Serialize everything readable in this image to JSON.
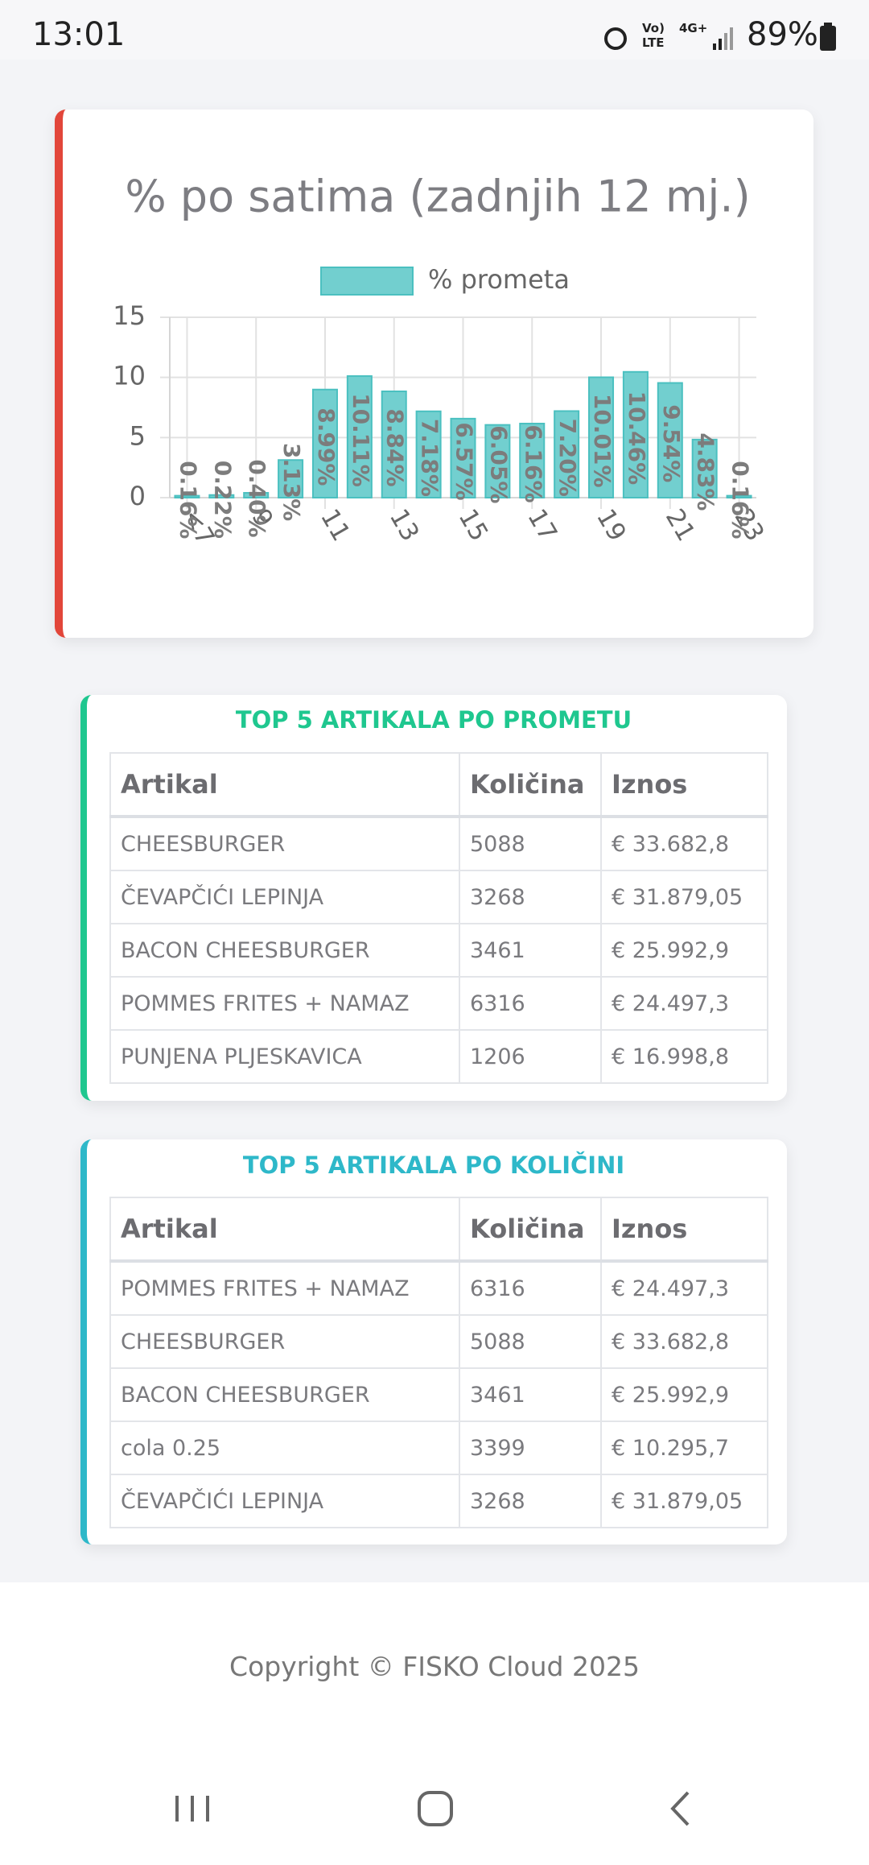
{
  "status_bar": {
    "time": "13:01",
    "volte": "Vo)",
    "lte": "LTE",
    "network": "4G+",
    "battery": "89%"
  },
  "chart_data": {
    "type": "bar",
    "title": "% po satima (zadnjih 12 mj.)",
    "categories": [
      "<7",
      null,
      "9",
      null,
      "11",
      null,
      "13",
      null,
      "15",
      null,
      "17",
      null,
      "19",
      null,
      "21",
      null,
      "23"
    ],
    "series": [
      {
        "name": "% prometa",
        "color": "#72cfcf",
        "border_color": "#4bc0c0",
        "values": [
          0.16,
          0.22,
          0.4,
          3.13,
          8.99,
          10.11,
          8.84,
          7.18,
          6.57,
          6.05,
          6.16,
          7.2,
          10.01,
          10.46,
          9.54,
          4.83,
          0.16
        ],
        "value_labels": [
          "0.16%",
          "0.22%",
          "0.40%",
          "3.13%",
          "8.99%",
          "10.11%",
          "8.84%",
          "7.18%",
          "6.57%",
          "6.05%",
          "6.16%",
          "7.20%",
          "10.01%",
          "10.46%",
          "9.54%",
          "4.83%",
          "0.16%"
        ]
      }
    ],
    "ylim": [
      0,
      15
    ],
    "yticks": [
      0,
      5,
      10,
      15
    ],
    "grid": true,
    "legend": "top"
  },
  "tables": [
    {
      "title": "TOP 5 ARTIKALA PO PROMETU",
      "color": "#1fc78f",
      "headers": [
        "Artikal",
        "Količina",
        "Iznos"
      ],
      "rows": [
        [
          "CHEESBURGER",
          "5088",
          "€ 33.682,8"
        ],
        [
          "ČEVAPČIĆI LEPINJA",
          "3268",
          "€ 31.879,05"
        ],
        [
          "BACON CHEESBURGER",
          "3461",
          "€ 25.992,9"
        ],
        [
          "POMMES FRITES + NAMAZ",
          "6316",
          "€ 24.497,3"
        ],
        [
          "PUNJENA PLJESKAVICA",
          "1206",
          "€ 16.998,8"
        ]
      ]
    },
    {
      "title": "TOP 5 ARTIKALA PO KOLIČINI",
      "color": "#2eb8c9",
      "headers": [
        "Artikal",
        "Količina",
        "Iznos"
      ],
      "rows": [
        [
          "POMMES FRITES + NAMAZ",
          "6316",
          "€ 24.497,3"
        ],
        [
          "CHEESBURGER",
          "5088",
          "€ 33.682,8"
        ],
        [
          "BACON CHEESBURGER",
          "3461",
          "€ 25.992,9"
        ],
        [
          "cola 0.25",
          "3399",
          "€ 10.295,7"
        ],
        [
          "ČEVAPČIĆI LEPINJA",
          "3268",
          "€ 31.879,05"
        ]
      ]
    }
  ],
  "footer": "Copyright © FISKO Cloud 2025"
}
